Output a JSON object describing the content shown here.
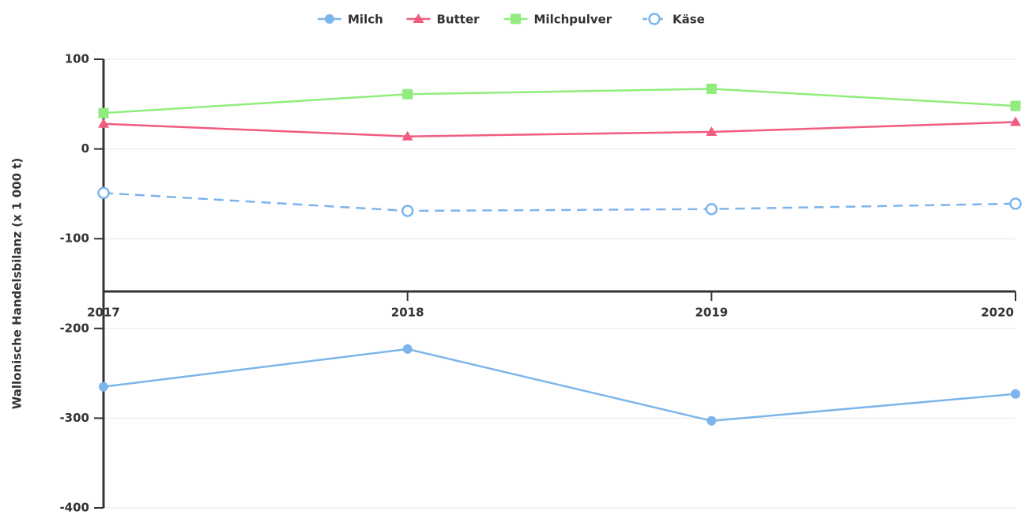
{
  "chart_data": {
    "type": "line",
    "y_title": "Wallonische Handelsbilanz (x 1 000 t)",
    "categories": [
      "2017",
      "2018",
      "2019",
      "2020"
    ],
    "series": [
      {
        "name": "Milch",
        "color": "#7cb5ec",
        "marker": "circle",
        "dashed": false,
        "values": [
          -265,
          -223,
          -303,
          -273
        ]
      },
      {
        "name": "Butter",
        "color": "#f15c80",
        "marker": "triangle",
        "dashed": false,
        "values": [
          28,
          14,
          19,
          30
        ]
      },
      {
        "name": "Milchpulver",
        "color": "#90ed7d",
        "marker": "square",
        "dashed": false,
        "values": [
          40,
          61,
          67,
          48
        ]
      },
      {
        "name": "Käse",
        "color": "#7cb5ec",
        "marker": "hollow-circle",
        "dashed": true,
        "values": [
          -49,
          -69,
          -67,
          -61
        ]
      }
    ],
    "ylim": [
      -400,
      100
    ],
    "yticks": [
      -400,
      -300,
      -200,
      -100,
      0,
      100
    ],
    "grid": true,
    "legend": "top"
  }
}
